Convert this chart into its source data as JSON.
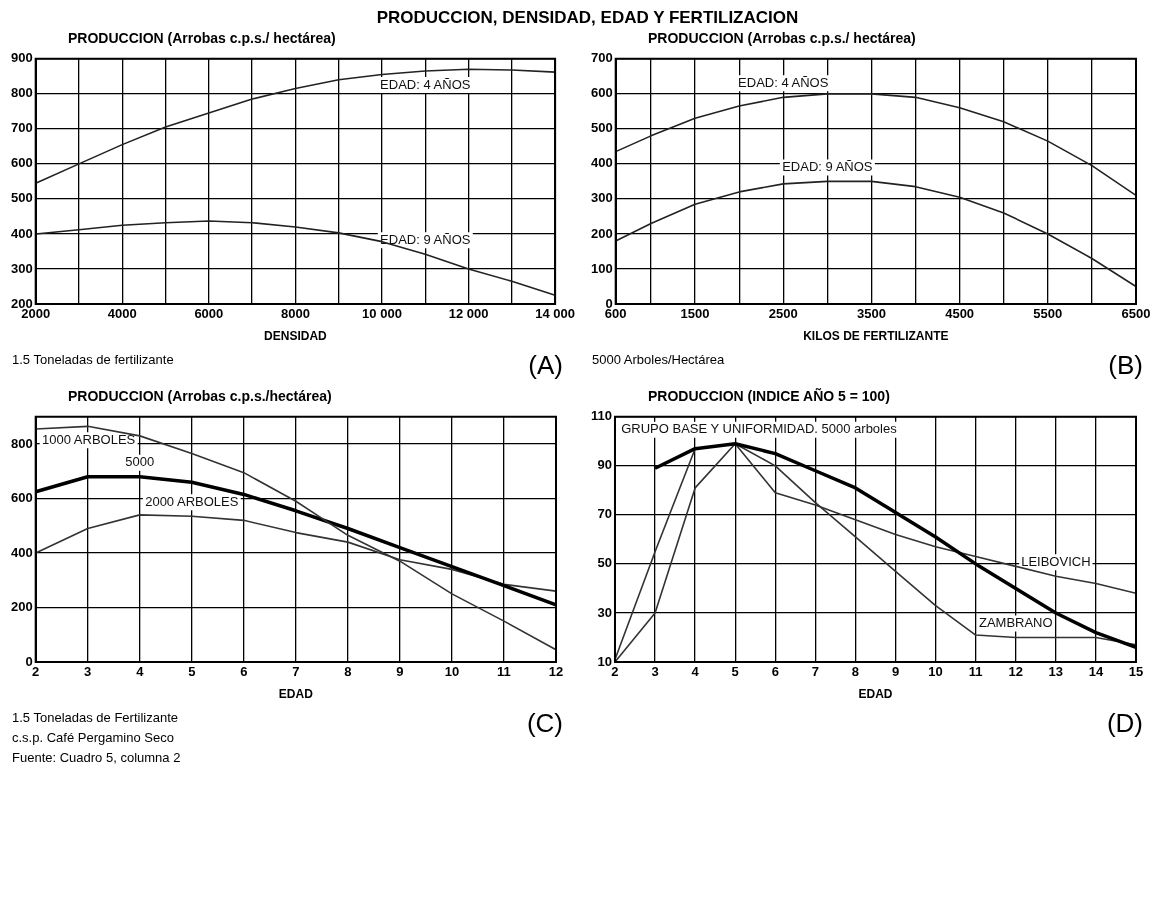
{
  "chart_data": [
    {
      "type": "line",
      "title": "PRODUCCION, DENSIDAD, EDAD Y FERTILIZACION",
      "ylabel": "PRODUCCION (Arrobas c.p.s./ hectárea)",
      "xlabel": "DENSIDAD",
      "x": [
        2000,
        3000,
        4000,
        5000,
        6000,
        7000,
        8000,
        9000,
        10000,
        11000,
        12000,
        13000,
        14000
      ],
      "series": [
        {
          "color": "#222222",
          "values": [
            545,
            600,
            655,
            705,
            745,
            785,
            815,
            840,
            855,
            865,
            870,
            868,
            862
          ]
        },
        {
          "color": "#222222",
          "values": [
            400,
            412,
            425,
            432,
            437,
            432,
            420,
            403,
            378,
            342,
            300,
            265,
            225
          ]
        }
      ],
      "xlim": [
        2000,
        14000
      ],
      "xticks": [
        2000,
        {
          "value": 3000,
          "label": null
        },
        4000,
        {
          "value": 5000,
          "label": null
        },
        6000,
        {
          "value": 7000,
          "label": null
        },
        8000,
        {
          "value": 9000,
          "label": null
        },
        {
          "value": 10000,
          "label": "10 000"
        },
        {
          "value": 11000,
          "label": null
        },
        {
          "value": 12000,
          "label": "12 000"
        },
        {
          "value": 13000,
          "label": null
        },
        {
          "value": 14000,
          "label": "14 000"
        }
      ],
      "ylim": [
        200,
        900
      ],
      "yticks": [
        200,
        300,
        400,
        500,
        600,
        700,
        800,
        900
      ],
      "grid": true,
      "annotations": [
        {
          "text": "EDAD: 4 AÑOS",
          "x": 11000,
          "y": 865
        },
        {
          "text": "EDAD: 9 AÑOS",
          "x": 11000,
          "y": 342
        },
        "1.5 Toneladas de fertilizante",
        "(A)"
      ]
    },
    {
      "type": "line",
      "ylabel": "PRODUCCION (Arrobas c.p.s./ hectárea)",
      "xlabel": "KILOS DE FERTILIZANTE",
      "x": [
        600,
        1000,
        1500,
        2000,
        2500,
        3000,
        3500,
        4000,
        4500,
        5000,
        5500,
        6000,
        6500
      ],
      "series": [
        {
          "color": "#222222",
          "values": [
            435,
            480,
            530,
            565,
            590,
            600,
            600,
            590,
            560,
            520,
            465,
            395,
            310
          ]
        },
        {
          "color": "#222222",
          "values": [
            180,
            230,
            285,
            320,
            343,
            350,
            350,
            335,
            305,
            260,
            200,
            130,
            50
          ]
        }
      ],
      "xlim": [
        600,
        6500
      ],
      "xticks": [
        600,
        {
          "value": 1000,
          "label": null
        },
        1500,
        {
          "value": 2000,
          "label": null
        },
        2500,
        {
          "value": 3000,
          "label": null
        },
        3500,
        {
          "value": 4000,
          "label": null
        },
        4500,
        {
          "value": 5000,
          "label": null
        },
        5500,
        {
          "value": 6000,
          "label": null
        },
        6500
      ],
      "ylim": [
        0,
        700
      ],
      "yticks": [
        0,
        100,
        200,
        300,
        400,
        500,
        600,
        700
      ],
      "grid": true,
      "annotations": [
        {
          "text": "EDAD: 4 AÑOS",
          "x": 2500,
          "y": 590
        },
        {
          "text": "EDAD: 9 AÑOS",
          "x": 3000,
          "y": 350
        },
        "5000 Arboles/Hectárea",
        "(B)"
      ]
    },
    {
      "type": "line",
      "ylabel": "PRODUCCION (Arrobas c.p.s./hectárea)",
      "xlabel": "EDAD",
      "x": [
        2,
        3,
        4,
        5,
        6,
        7,
        8,
        9,
        10,
        11,
        12
      ],
      "series": [
        {
          "color": "#333333",
          "values": [
            855,
            865,
            830,
            765,
            695,
            590,
            465,
            370,
            250,
            150,
            45
          ]
        },
        {
          "color": "#000000",
          "values": [
            625,
            680,
            680,
            660,
            615,
            555,
            490,
            420,
            350,
            280,
            210
          ]
        },
        {
          "color": "#333333",
          "values": [
            400,
            490,
            540,
            535,
            520,
            475,
            440,
            375,
            340,
            285,
            260
          ]
        }
      ],
      "xlim": [
        2,
        12
      ],
      "xticks": [
        2,
        3,
        4,
        5,
        6,
        7,
        8,
        9,
        10,
        11,
        12
      ],
      "ylim": [
        0,
        900
      ],
      "yticks": [
        0,
        200,
        400,
        600,
        800
      ],
      "grid": true,
      "annotations": [
        {
          "text": "1000 ARBOLES",
          "x": 3,
          "y": 865
        },
        {
          "text": "5000",
          "x": 4,
          "y": 680
        },
        {
          "text": "2000 ARBOLES",
          "x": 5,
          "y": 535
        },
        "1.5 Toneladas de Fertilizante",
        "c.s.p. Café Pergamino Seco",
        "Fuente: Cuadro 5, columna 2",
        "(C)"
      ]
    },
    {
      "type": "line",
      "ylabel": "PRODUCCION (INDICE AÑO 5 = 100)",
      "xlabel": "EDAD",
      "series": [
        {
          "color": "#000000",
          "x": [
            3,
            4,
            5,
            6,
            7,
            8,
            9,
            10,
            11,
            12,
            13,
            14,
            15
          ],
          "values": [
            89,
            97,
            99,
            95,
            88,
            81,
            71,
            61,
            50,
            40,
            30,
            22,
            16
          ]
        },
        {
          "color": "#333333",
          "x": [
            2,
            3,
            4,
            5,
            6,
            7,
            8,
            9,
            10,
            11,
            12,
            13,
            14,
            15
          ],
          "values": [
            11,
            55,
            97,
            99,
            79,
            74,
            68,
            62,
            57,
            53,
            49,
            45,
            42,
            38
          ]
        },
        {
          "color": "#333333",
          "x": [
            2,
            3,
            4,
            5,
            6,
            7,
            8,
            9,
            10,
            11,
            12,
            13,
            14,
            15
          ],
          "values": [
            10,
            30,
            81,
            99,
            90,
            75,
            61,
            47,
            33,
            21,
            20,
            20,
            20,
            17
          ]
        }
      ],
      "xlim": [
        2,
        15
      ],
      "xticks": [
        2,
        3,
        4,
        5,
        6,
        7,
        8,
        9,
        10,
        11,
        12,
        13,
        14,
        15
      ],
      "ylim": [
        10,
        110
      ],
      "yticks": [
        10,
        30,
        50,
        70,
        90,
        110
      ],
      "grid": true,
      "annotations": [
        {
          "text": "GRUPO BASE Y UNIFORMIDAD. 5000 arboles",
          "x": 5,
          "y": 99
        },
        {
          "text": "LEIBOVICH",
          "x": 13,
          "y": 45
        },
        {
          "text": "ZAMBRANO",
          "x": 12,
          "y": 20
        },
        "(D)"
      ]
    }
  ]
}
